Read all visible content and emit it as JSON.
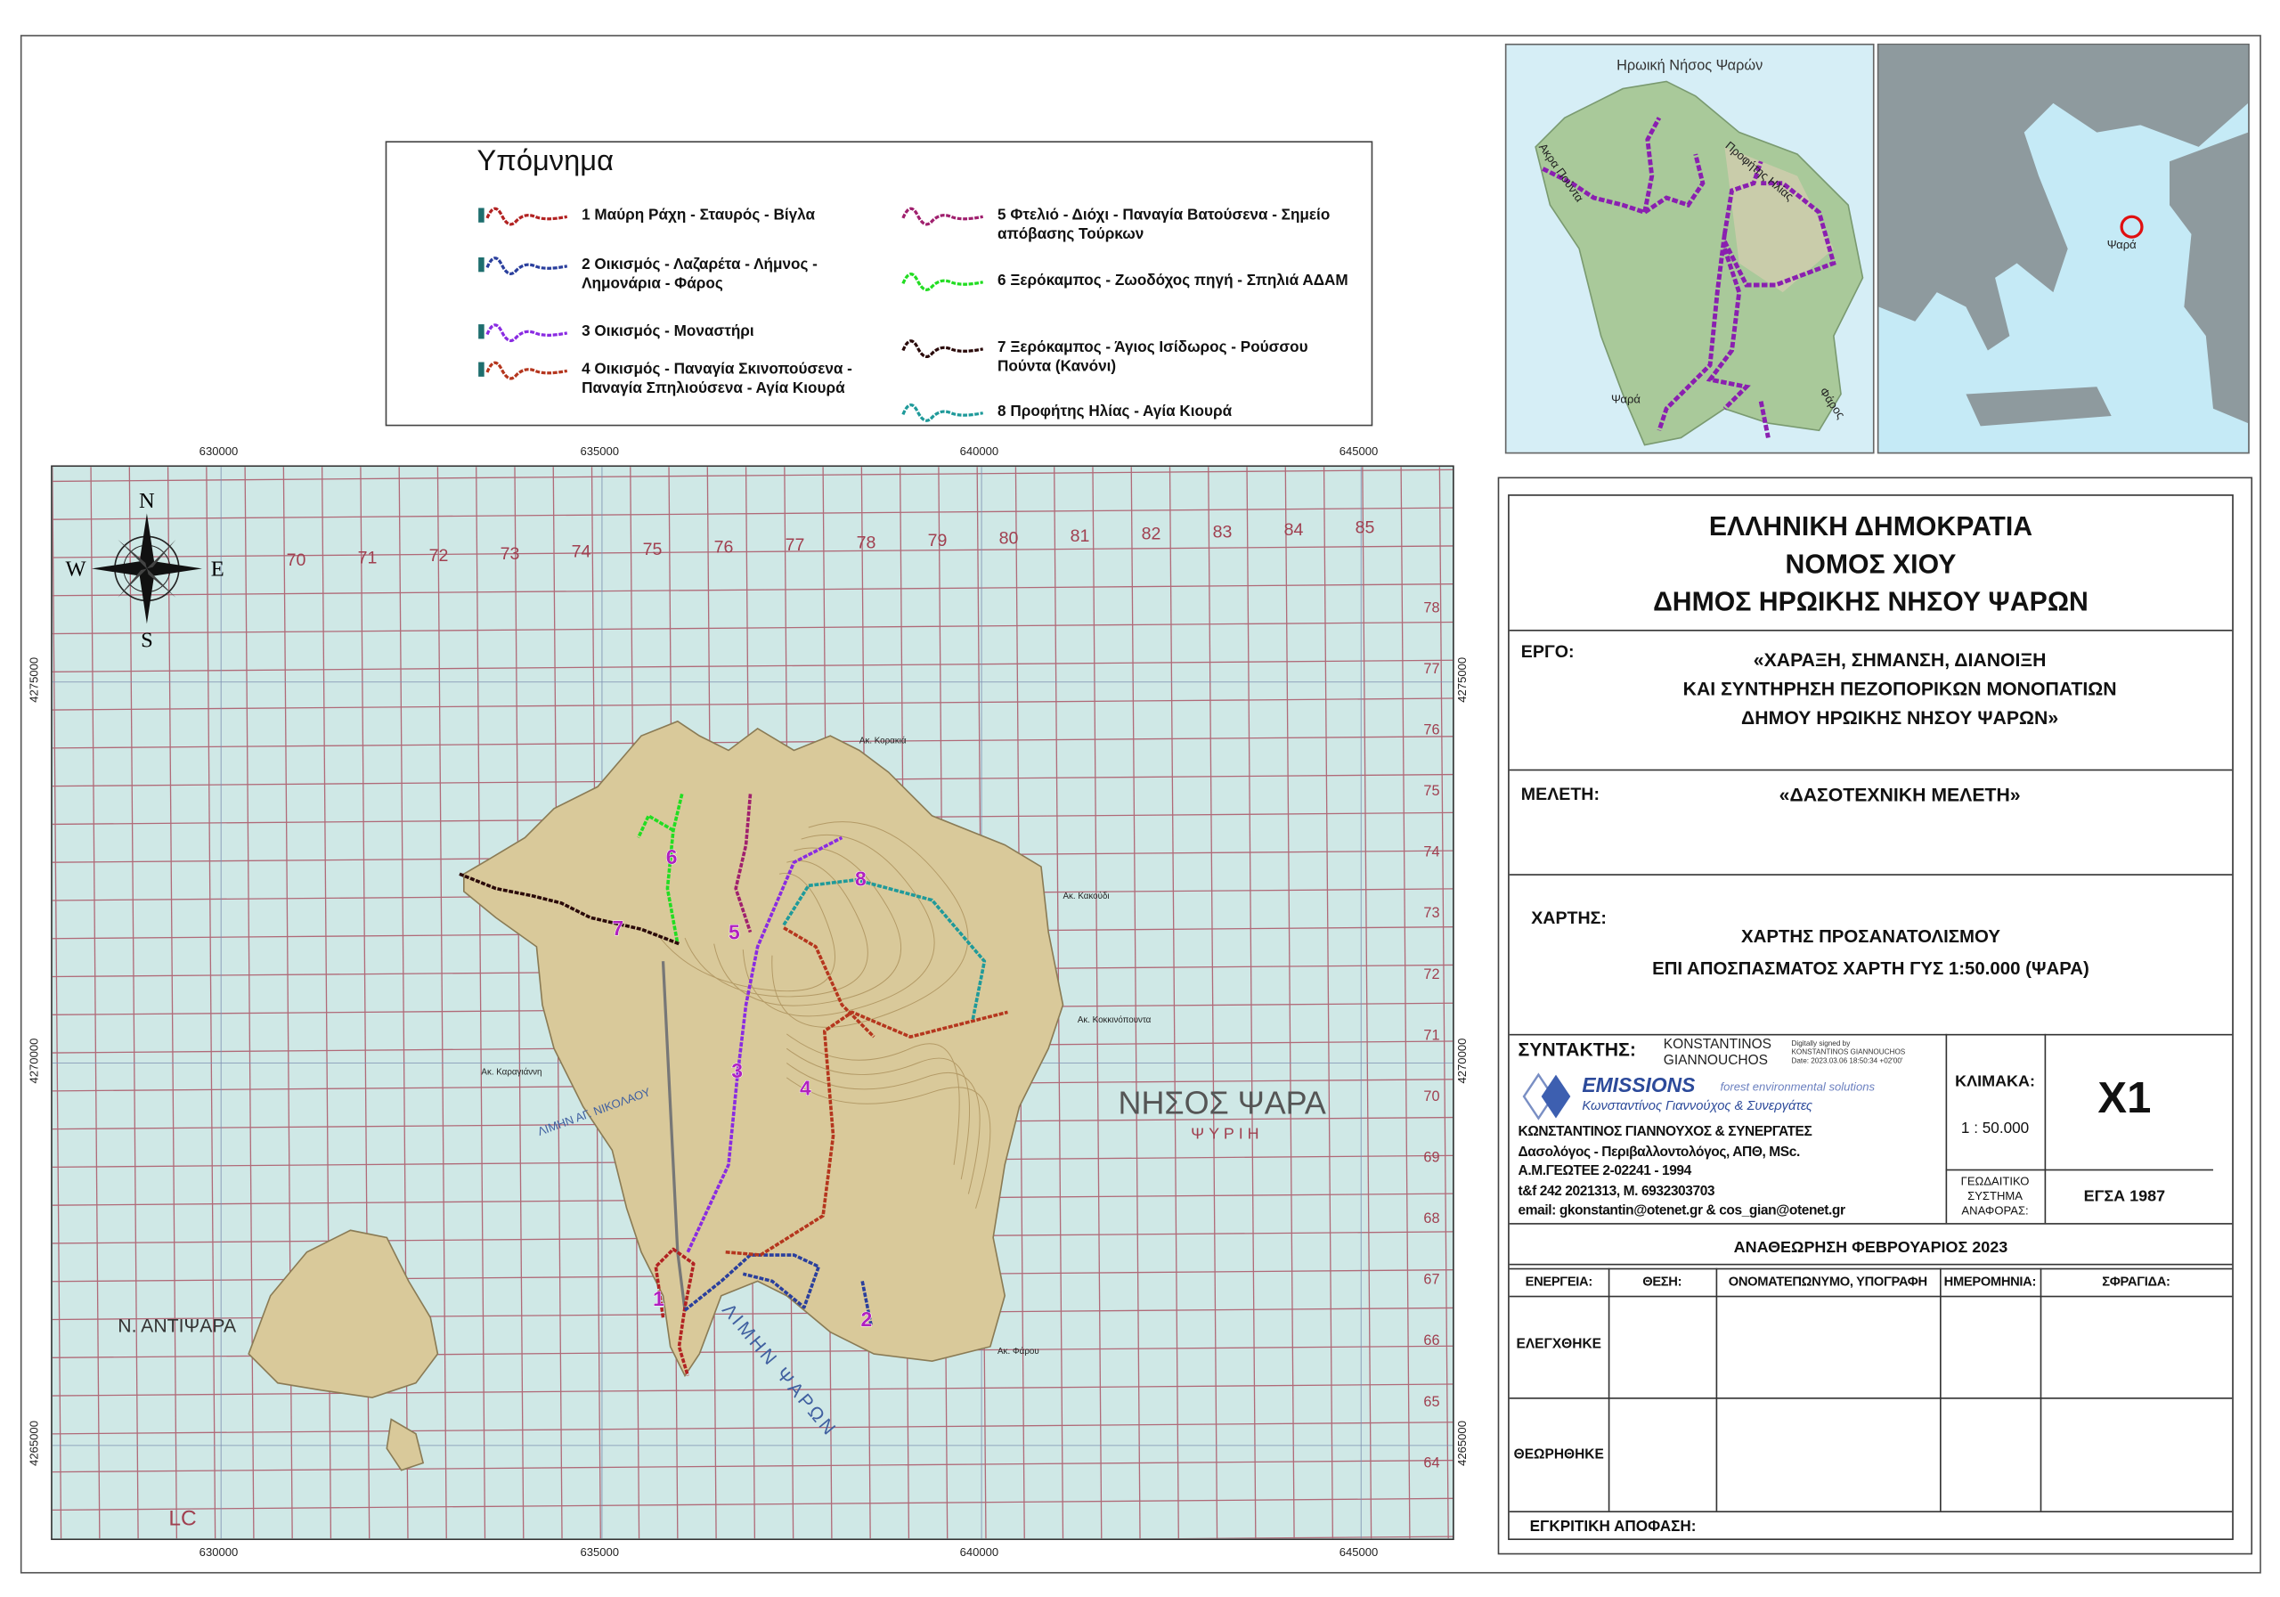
{
  "legend": {
    "title": "Υπόμνημα",
    "items": [
      {
        "label": "1 Μαύρη Ράχη - Σταυρός - Βίγλα",
        "color": "#b22222"
      },
      {
        "label": "2 Οικισμός - Λαζαρέτα - Λήμνος - Λημονάρια - Φάρος",
        "color": "#2a3f9d"
      },
      {
        "label": "3 Οικισμός - Μοναστήρι",
        "color": "#8a2be2"
      },
      {
        "label": "4 Οικισμός - Παναγία Σκινοπούσενα - Παναγία Σπηλιούσενα - Αγία Κιουρά",
        "color": "#b5361e"
      },
      {
        "label": "5 Φτελιό - Διόχι - Παναγία Βατούσενα - Σημείο απόβασης Τούρκων",
        "color": "#a0206e"
      },
      {
        "label": "6 Ξερόκαμπος - Ζωοδόχος πηγή - Σπηλιά ΑΔΑΜ",
        "color": "#22dd22"
      },
      {
        "label": "7 Ξερόκαμπος - Άγιος Ισίδωρος - Ρούσσου Πούντα (Κανόνι)",
        "color": "#2a0a0a"
      },
      {
        "label": "8 Προφήτης Ηλίας - Αγία Κιουρά",
        "color": "#1f9a9a"
      }
    ]
  },
  "map": {
    "x_ticks": [
      "630000",
      "635000",
      "640000",
      "645000"
    ],
    "y_ticks": [
      "4275000",
      "4270000",
      "4265000"
    ],
    "compass": {
      "n": "N",
      "s": "S",
      "e": "E",
      "w": "W"
    },
    "labels": {
      "island": "ΝΗΣΟΣ ΨΑΡΑ",
      "island_sub": "ΨΥΡΙΗ",
      "antipsara": "Ν. ΑΝΤΙΨΑΡΑ",
      "harbor": "ΛΙΜΗΝ ΨΑΡΩΝ",
      "bay": "ΛΙΜΗΝ ΑΓ. ΝΙΚΟΛΑΟΥ",
      "lc": "LC",
      "korakia": "Ακ. Κορακιά",
      "kokkinopounta": "Ακ. Κοκκινόπουντα",
      "kakoudi": "Ακ. Κακούδι",
      "farou": "Ακ. Φάρου",
      "karagianni": "Ακ. Καραγιάννη"
    },
    "grid_labels_top": [
      "70",
      "71",
      "72",
      "73",
      "74",
      "75",
      "76",
      "77",
      "78",
      "79",
      "80",
      "81",
      "82",
      "83",
      "84",
      "85"
    ],
    "grid_labels_right": [
      "78",
      "77",
      "76",
      "75",
      "74",
      "73",
      "72",
      "71",
      "70",
      "69",
      "68",
      "67",
      "66",
      "65",
      "64"
    ],
    "trail_numbers": [
      "1",
      "2",
      "3",
      "4",
      "5",
      "6",
      "7",
      "8"
    ],
    "sea_color": "#cfe8e6",
    "land_color": "#d9c99a"
  },
  "inset_island": {
    "title": "Ηρωική Νήσος Ψαρών",
    "labels": [
      "Ακρα Πούντα",
      "Προφήτης Ηλίας",
      "Ψαρά",
      "Φάρος"
    ],
    "trail_color": "#8a1fb0"
  },
  "inset_greece": {
    "label": "Ψαρά",
    "marker_color": "#e01010"
  },
  "titleblock": {
    "header": [
      "ΕΛΛΗΝΙΚΗ ΔΗΜΟΚΡΑΤΙΑ",
      "ΝΟΜΟΣ ΧΙΟΥ",
      "ΔΗΜΟΣ ΗΡΩΙΚΗΣ ΝΗΣΟΥ ΨΑΡΩΝ"
    ],
    "ergo_label": "ΕΡΓΟ:",
    "ergo": [
      "«ΧΑΡΑΞΗ, ΣΗΜΑΝΣΗ, ΔΙΑΝΟΙΞΗ",
      "ΚΑΙ ΣΥΝΤΗΡΗΣΗ ΠΕΖΟΠΟΡΙΚΩΝ ΜΟΝΟΠΑΤΙΩΝ",
      "ΔΗΜΟΥ ΗΡΩΙΚΗΣ ΝΗΣΟΥ ΨΑΡΩΝ»"
    ],
    "meleti_label": "ΜΕΛΕΤΗ:",
    "meleti": "«ΔΑΣΟΤΕΧΝΙΚΗ ΜΕΛΕΤΗ»",
    "xartis_label": "ΧΑΡΤΗΣ:",
    "xartis": [
      "ΧΑΡΤΗΣ ΠΡΟΣΑΝΑΤΟΛΙΣΜΟΥ",
      "ΕΠΙ ΑΠΟΣΠΑΣΜΑΤΟΣ ΧΑΡΤΗ ΓΥΣ 1:50.000 (ΨΑΡΑ)"
    ],
    "syntaktis_label": "ΣΥΝΤΑΚΤΗΣ:",
    "signature_name": [
      "KONSTANTINOS",
      "GIANNOUCHOS"
    ],
    "signature_note": [
      "Digitally signed by",
      "KONSTANTINOS GIANNOUCHOS",
      "Date: 2023.03.06 18:50:34 +02'00'"
    ],
    "logo": {
      "name": "EMISSIONS",
      "tagline": "forest environmental solutions",
      "sub": "Κωνσταντίνος Γιαννούχος & Συνεργάτες"
    },
    "author": [
      "ΚΩΝΣΤΑΝΤΙΝΟΣ ΓΙΑΝΝΟΥΧΟΣ & ΣΥΝΕΡΓΑΤΕΣ",
      "Δασολόγος - Περιβαλλοντολόγος, ΑΠΘ, MSc.",
      "Α.Μ.ΓΕΩΤΕΕ 2-02241 - 1994",
      "t&f 242 2021313, M. 6932303703",
      "email: gkonstantin@otenet.gr  & cos_gian@otenet.gr"
    ],
    "scale_label": "ΚΛΙΜΑΚΑ:",
    "scale": "1 : 50.000",
    "sheet": "X1",
    "geodetic_label": [
      "ΓΕΩΔΑΙΤΙΚΟ",
      "ΣΥΣΤΗΜΑ",
      "ΑΝΑΦΟΡΑΣ:"
    ],
    "geodetic": "ΕΓΣΑ 1987",
    "revision": "ΑΝΑΘΕΩΡΗΣΗ ΦΕΒΡΟΥΑΡΙΟΣ 2023",
    "table_headers": [
      "ΕΝΕΡΓΕΙΑ:",
      "ΘΕΣΗ:",
      "ΟΝΟΜΑΤΕΠΩΝΥΜΟ, ΥΠΟΓΡΑΦΗ",
      "ΗΜΕΡΟΜΗΝΙΑ:",
      "ΣΦΡΑΓΙΔΑ:"
    ],
    "rows": [
      "ΕΛΕΓΧΘΗΚΕ",
      "ΘΕΩΡΗΘΗΚΕ"
    ],
    "approval": "ΕΓΚΡΙΤΙΚΗ ΑΠΟΦΑΣΗ:"
  }
}
